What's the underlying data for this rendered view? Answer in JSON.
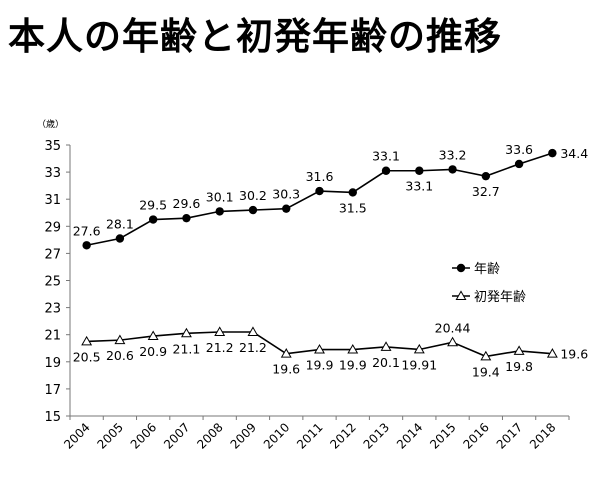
{
  "title": "本人の年齢と初発年齢の推移",
  "chart_data": {
    "type": "line",
    "title": "本人の年齢と初発年齢の推移",
    "y_unit": "（歳）",
    "categories": [
      "2004",
      "2005",
      "2006",
      "2007",
      "2008",
      "2009",
      "2010",
      "2011",
      "2012",
      "2013",
      "2014",
      "2015",
      "2016",
      "2017",
      "2018"
    ],
    "ylim": [
      15,
      35
    ],
    "yticks": [
      15,
      17,
      19,
      21,
      23,
      25,
      27,
      29,
      31,
      33,
      35
    ],
    "grid": false,
    "legend_position": "right",
    "series": [
      {
        "name": "年齢",
        "marker": "circle-filled",
        "values": [
          27.6,
          28.1,
          29.5,
          29.6,
          30.1,
          30.2,
          30.3,
          31.6,
          31.5,
          33.1,
          33.1,
          33.2,
          32.7,
          33.6,
          34.4
        ],
        "labels": [
          "27.6",
          "28.1",
          "29.5",
          "29.6",
          "30.1",
          "30.2",
          "30.3",
          "31.6",
          "31.5",
          "33.1",
          "33.1",
          "33.2",
          "32.7",
          "33.6",
          "34.4"
        ],
        "label_pos": [
          "above",
          "above",
          "above",
          "above",
          "above",
          "above",
          "above",
          "above",
          "below",
          "above",
          "below",
          "above",
          "below",
          "above",
          "right"
        ]
      },
      {
        "name": "初発年齢",
        "marker": "triangle-open",
        "values": [
          20.5,
          20.6,
          20.9,
          21.1,
          21.2,
          21.2,
          19.6,
          19.9,
          19.9,
          20.1,
          19.91,
          20.44,
          19.4,
          19.8,
          19.6
        ],
        "labels": [
          "20.5",
          "20.6",
          "20.9",
          "21.1",
          "21.2",
          "21.2",
          "19.6",
          "19.9",
          "19.9",
          "20.1",
          "19.91",
          "20.44",
          "19.4",
          "19.8",
          "19.6"
        ],
        "label_pos": [
          "below",
          "below",
          "below",
          "below",
          "below",
          "below",
          "below",
          "below",
          "below",
          "below",
          "below",
          "above",
          "below",
          "below",
          "right"
        ]
      }
    ]
  }
}
